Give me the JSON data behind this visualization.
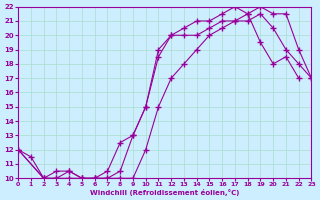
{
  "xlabel": "Windchill (Refroidissement éolien,°C)",
  "bg_color": "#cceeff",
  "grid_color": "#aaddcc",
  "line_color": "#990099",
  "xlim": [
    0,
    23
  ],
  "ylim": [
    10,
    22
  ],
  "xticks": [
    0,
    1,
    2,
    3,
    4,
    5,
    6,
    7,
    8,
    9,
    10,
    11,
    12,
    13,
    14,
    15,
    16,
    17,
    18,
    19,
    20,
    21,
    22,
    23
  ],
  "yticks": [
    10,
    11,
    12,
    13,
    14,
    15,
    16,
    17,
    18,
    19,
    20,
    21,
    22
  ],
  "line1_x": [
    0,
    1,
    2,
    3,
    4,
    5,
    6,
    7,
    8,
    9,
    10,
    11,
    12,
    13,
    14,
    15,
    16,
    17,
    18,
    19,
    20,
    21,
    22,
    23
  ],
  "line1_y": [
    12,
    11.5,
    10,
    10,
    10.5,
    10,
    10,
    10,
    10.5,
    13,
    15,
    18.5,
    20,
    20,
    20,
    20.5,
    21,
    21,
    21.5,
    22,
    21.5,
    21.5,
    19,
    17
  ],
  "line2_x": [
    0,
    2,
    3,
    4,
    5,
    6,
    7,
    8,
    9,
    10,
    11,
    12,
    13,
    14,
    15,
    16,
    17,
    18,
    19,
    20,
    21,
    22
  ],
  "line2_y": [
    12,
    10,
    10.5,
    10.5,
    10,
    10,
    10.5,
    12.5,
    13,
    15,
    19,
    20,
    20.5,
    21,
    21,
    21.5,
    22,
    21.5,
    19.5,
    18,
    18.5,
    17
  ],
  "line3_x": [
    0,
    2,
    3,
    4,
    5,
    6,
    7,
    8,
    9,
    10,
    11,
    12,
    13,
    14,
    15,
    16,
    17,
    18,
    19,
    20,
    21,
    22,
    23
  ],
  "line3_y": [
    12,
    10,
    10,
    10,
    10,
    10,
    10,
    10,
    10,
    12,
    15,
    17,
    18,
    19,
    20,
    20.5,
    21,
    21,
    21.5,
    20.5,
    19,
    18,
    17
  ]
}
